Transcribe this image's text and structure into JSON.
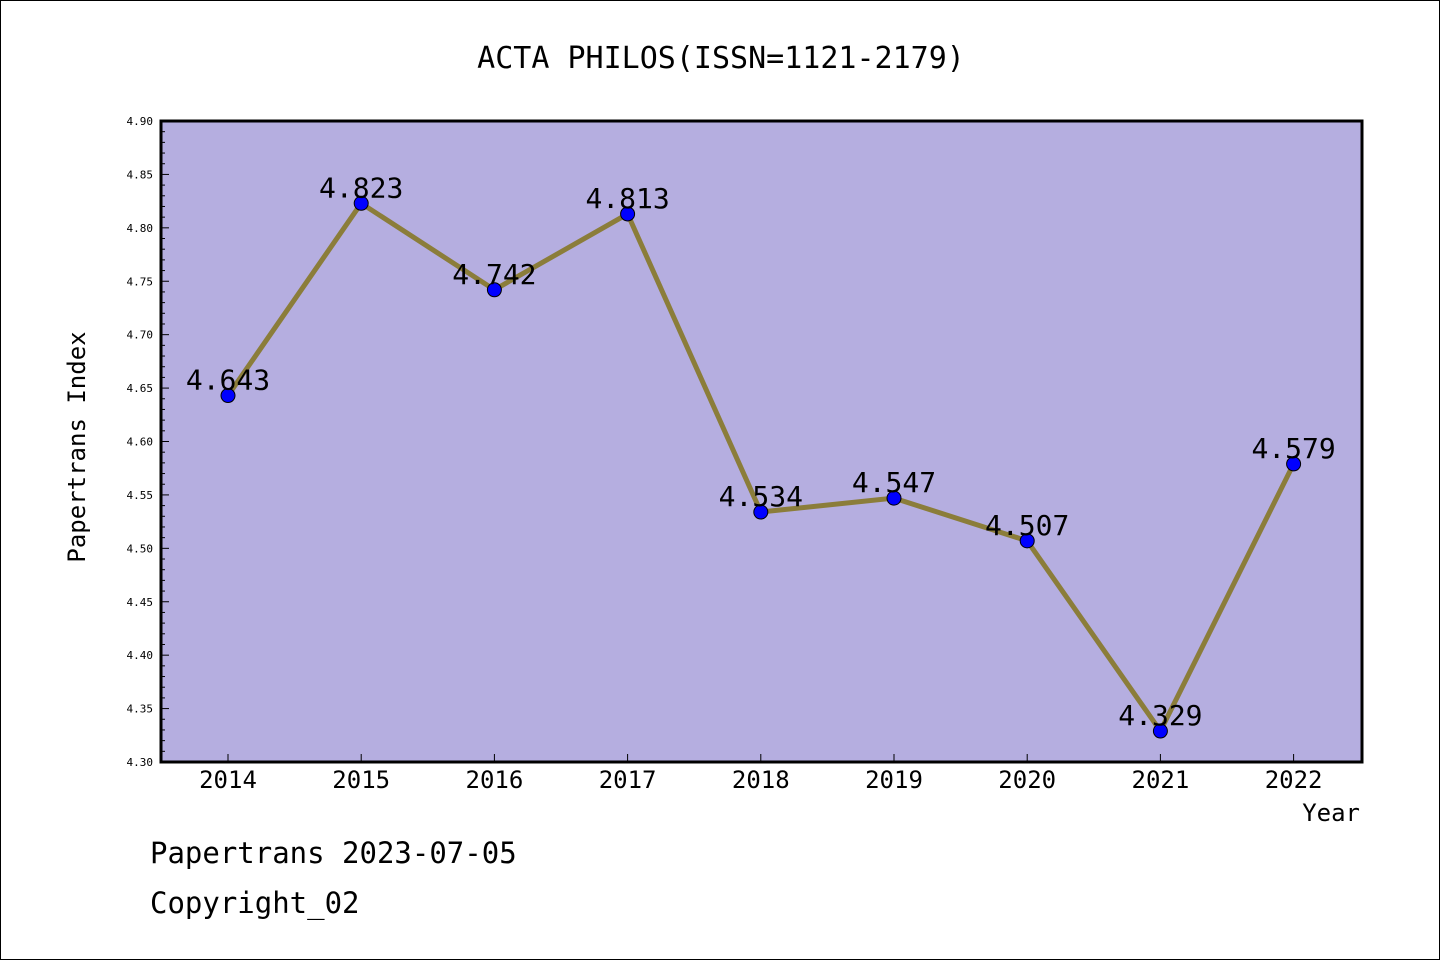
{
  "chart_data": {
    "type": "line",
    "title": "ACTA PHILOS(ISSN=1121-2179)",
    "xlabel": "Year",
    "ylabel": "Papertrans Index",
    "categories": [
      "2014",
      "2015",
      "2016",
      "2017",
      "2018",
      "2019",
      "2020",
      "2021",
      "2022"
    ],
    "series": [
      {
        "values": [
          4.643,
          4.823,
          4.742,
          4.813,
          4.534,
          4.547,
          4.507,
          4.329,
          4.579
        ]
      }
    ],
    "data_labels": [
      "4.643",
      "4.823",
      "4.742",
      "4.813",
      "4.534",
      "4.547",
      "4.507",
      "4.329",
      "4.579"
    ],
    "ylim": [
      4.3,
      4.9
    ],
    "yticks": [
      "4.30",
      "4.35",
      "4.40",
      "4.45",
      "4.50",
      "4.55",
      "4.60",
      "4.65",
      "4.70",
      "4.75",
      "4.80",
      "4.85",
      "4.90"
    ],
    "grid": false,
    "legend": "none",
    "colors": {
      "plot_background": "#b5aee0",
      "line": "#8b7d3a",
      "marker": "#0000ff"
    }
  },
  "footer": {
    "source": "Papertrans 2023-07-05",
    "copyright": "Copyright_02"
  }
}
